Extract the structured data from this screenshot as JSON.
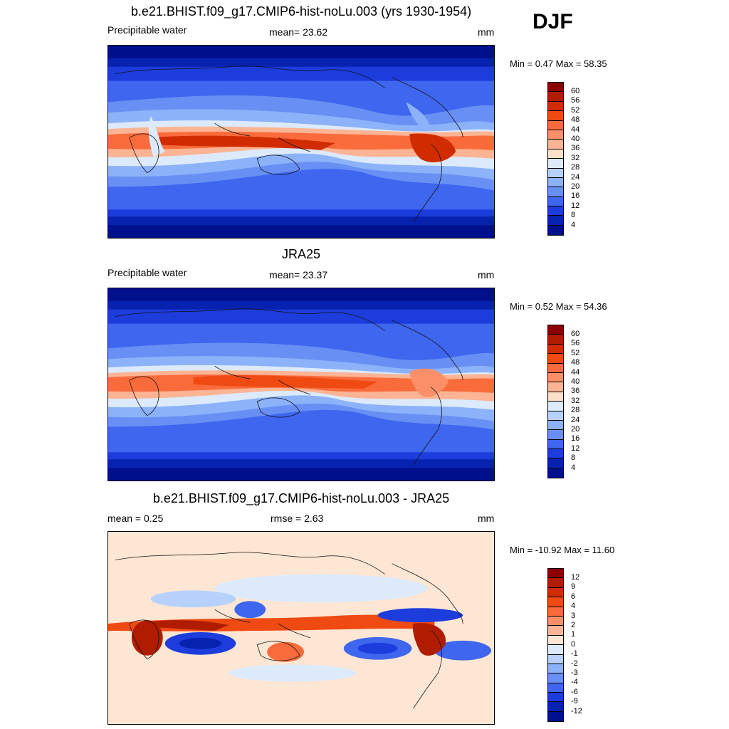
{
  "season": "DJF",
  "panels": [
    {
      "title": "b.e21.BHIST.f09_g17.CMIP6-hist-noLu.003 (yrs 1930-1954)",
      "left_label": "Precipitable water",
      "center_label": "mean=  23.62",
      "units": "mm",
      "minmax": "Min =   0.47 Max =  58.35"
    },
    {
      "title": "JRA25",
      "left_label": "Precipitable water",
      "center_label": "mean=  23.37",
      "units": "mm",
      "minmax": "Min =   0.52 Max =  54.36"
    },
    {
      "title": "b.e21.BHIST.f09_g17.CMIP6-hist-noLu.003 - JRA25",
      "left_label": "mean =   0.25",
      "center_label": "rmse =   2.63",
      "units": "mm",
      "minmax": "Min = -10.92 Max =  11.60"
    }
  ],
  "colorbars": {
    "absolute": {
      "labels": [
        "60",
        "56",
        "52",
        "48",
        "44",
        "40",
        "36",
        "32",
        "28",
        "24",
        "20",
        "16",
        "12",
        "8",
        "4"
      ],
      "colors": [
        "#8b0000",
        "#b01c00",
        "#d02c00",
        "#ee4a12",
        "#fa6b3c",
        "#fb9068",
        "#fcb494",
        "#fde0c8",
        "#dceafc",
        "#b6d2fc",
        "#8cb2fa",
        "#6890f4",
        "#3e66ee",
        "#1c3cdc",
        "#0822b0",
        "#000f8c"
      ]
    },
    "difference": {
      "labels": [
        "12",
        "9",
        "6",
        "4",
        "3",
        "2",
        "1",
        "0",
        "-1",
        "-2",
        "-3",
        "-4",
        "-6",
        "-9",
        "-12"
      ],
      "colors": [
        "#8b0000",
        "#b01c00",
        "#d02c00",
        "#ee4a12",
        "#fa6b3c",
        "#fb9068",
        "#fcb494",
        "#fde6d4",
        "#dceafc",
        "#b6d2fc",
        "#8cb2fa",
        "#6890f4",
        "#3e66ee",
        "#1c3cdc",
        "#0822b0",
        "#000f8c"
      ]
    }
  }
}
